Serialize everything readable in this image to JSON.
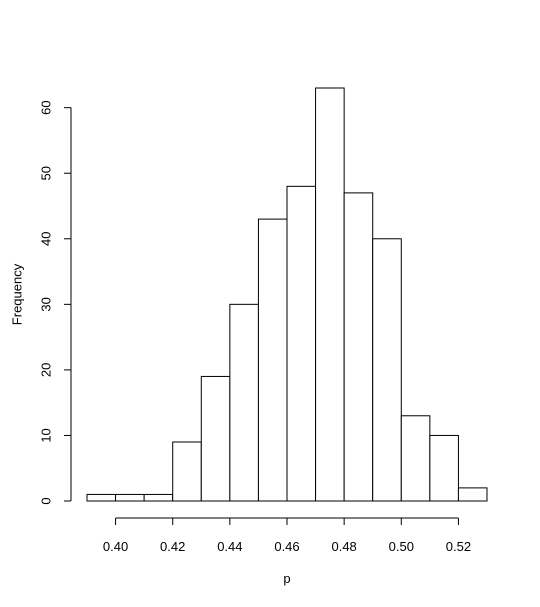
{
  "chart_data": {
    "type": "bar",
    "title": "",
    "xlabel": "p",
    "ylabel": "Frequency",
    "bins": [
      {
        "start": 0.39,
        "end": 0.4,
        "count": 1
      },
      {
        "start": 0.4,
        "end": 0.41,
        "count": 1
      },
      {
        "start": 0.41,
        "end": 0.42,
        "count": 1
      },
      {
        "start": 0.42,
        "end": 0.43,
        "count": 9
      },
      {
        "start": 0.43,
        "end": 0.44,
        "count": 19
      },
      {
        "start": 0.44,
        "end": 0.45,
        "count": 30
      },
      {
        "start": 0.45,
        "end": 0.46,
        "count": 43
      },
      {
        "start": 0.46,
        "end": 0.47,
        "count": 48
      },
      {
        "start": 0.47,
        "end": 0.48,
        "count": 63
      },
      {
        "start": 0.48,
        "end": 0.49,
        "count": 47
      },
      {
        "start": 0.49,
        "end": 0.5,
        "count": 40
      },
      {
        "start": 0.5,
        "end": 0.51,
        "count": 13
      },
      {
        "start": 0.51,
        "end": 0.52,
        "count": 10
      },
      {
        "start": 0.52,
        "end": 0.53,
        "count": 2
      }
    ],
    "xlim": [
      0.39,
      0.53
    ],
    "ylim": [
      0,
      63
    ],
    "xticks": [
      0.4,
      0.42,
      0.44,
      0.46,
      0.48,
      0.5,
      0.52
    ],
    "xtick_labels": [
      "0.40",
      "0.42",
      "0.44",
      "0.46",
      "0.48",
      "0.50",
      "0.52"
    ],
    "yticks": [
      0,
      10,
      20,
      30,
      40,
      50,
      60
    ],
    "ytick_labels": [
      "0",
      "10",
      "20",
      "30",
      "40",
      "50",
      "60"
    ],
    "grid": false,
    "legend": "none"
  }
}
